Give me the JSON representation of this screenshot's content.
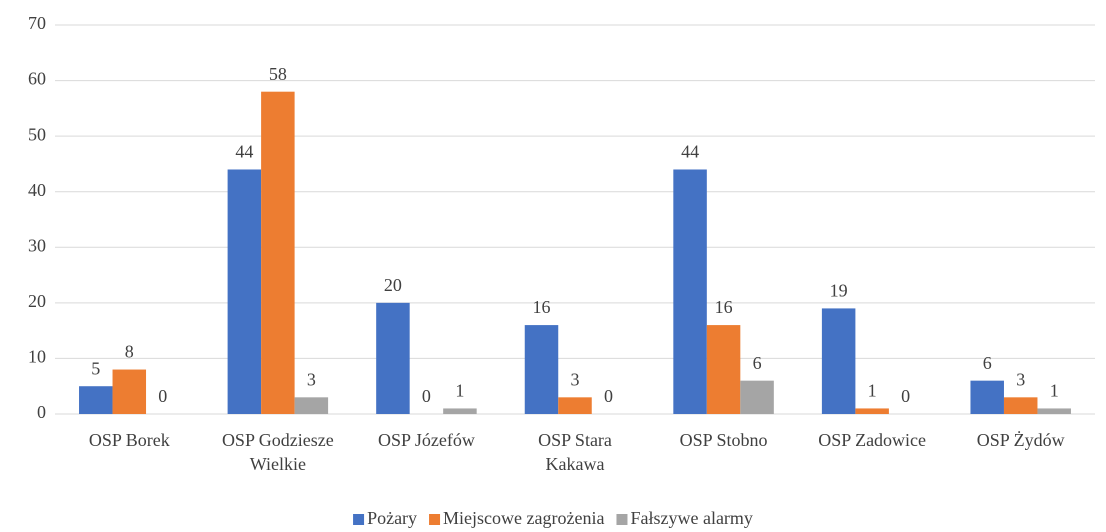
{
  "chart_data": {
    "type": "bar",
    "categories": [
      "OSP Borek",
      "OSP Godziesze Wielkie",
      "OSP Józefów",
      "OSP Stara Kakawa",
      "OSP Stobno",
      "OSP Zadowice",
      "OSP Żydów"
    ],
    "series": [
      {
        "name": "Pożary",
        "color": "#4472c4",
        "values": [
          5,
          44,
          20,
          16,
          44,
          19,
          6
        ]
      },
      {
        "name": "Miejscowe zagrożenia",
        "color": "#ed7d31",
        "values": [
          8,
          58,
          0,
          3,
          16,
          1,
          3
        ]
      },
      {
        "name": "Fałszywe alarmy",
        "color": "#a5a5a5",
        "values": [
          0,
          3,
          1,
          0,
          6,
          0,
          1
        ]
      }
    ],
    "ylim": [
      0,
      70
    ],
    "yticks": [
      0,
      10,
      20,
      30,
      40,
      50,
      60,
      70
    ],
    "grid": true,
    "legend": "bottom"
  }
}
